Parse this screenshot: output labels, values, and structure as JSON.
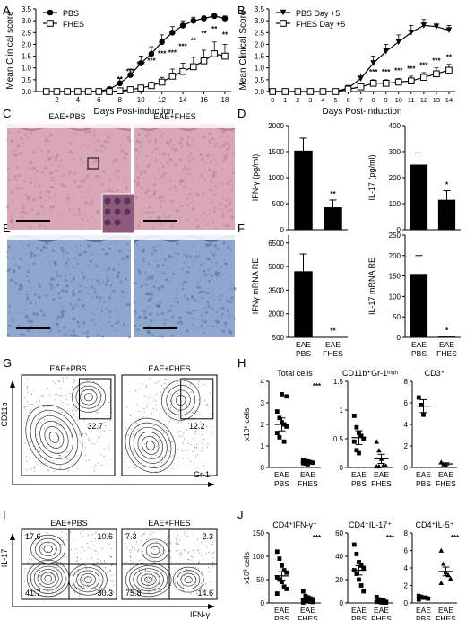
{
  "figure": {
    "panel_letters": [
      "A",
      "B",
      "C",
      "D",
      "E",
      "F",
      "G",
      "H",
      "I",
      "J"
    ]
  },
  "panel_c": {
    "labels": [
      "EAE+PBS",
      "EAE+FHES"
    ]
  },
  "colors": {
    "he_stain": "#d9a7b8",
    "he_stain_dark": "#b97c92",
    "blue_stain": "#8fa7cf",
    "blue_stain_dark": "#4e6ba8",
    "contour": "#333333"
  },
  "chart_data": [
    {
      "id": "A",
      "type": "line",
      "xlabel": "Days Post-induction",
      "ylabel": "Mean Clinical score",
      "x": [
        1,
        2,
        3,
        4,
        5,
        6,
        7,
        8,
        9,
        10,
        11,
        12,
        13,
        14,
        15,
        16,
        17,
        18
      ],
      "xticks": [
        2,
        4,
        6,
        8,
        10,
        12,
        14,
        16,
        18
      ],
      "xlim": [
        0,
        18.6
      ],
      "ylim": [
        0,
        3.5
      ],
      "yticks": [
        0.0,
        0.5,
        1.0,
        1.5,
        2.0,
        2.5,
        3.0,
        3.5
      ],
      "legend": "top-left",
      "series": [
        {
          "name": "PBS",
          "marker": "filled-circle",
          "values": [
            0,
            0,
            0,
            0,
            0,
            0.02,
            0.1,
            0.35,
            0.7,
            1.2,
            1.6,
            2.1,
            2.5,
            2.8,
            3.0,
            3.1,
            3.2,
            3.1
          ],
          "err": [
            0,
            0,
            0,
            0,
            0,
            0.03,
            0.1,
            0.2,
            0.25,
            0.3,
            0.3,
            0.3,
            0.25,
            0.2,
            0.15,
            0.1,
            0.1,
            0.1
          ]
        },
        {
          "name": "FHES",
          "marker": "open-square",
          "values": [
            0,
            0,
            0,
            0,
            0,
            0,
            0,
            0.03,
            0.08,
            0.15,
            0.25,
            0.4,
            0.65,
            0.85,
            1.05,
            1.3,
            1.6,
            1.5
          ],
          "err": [
            0,
            0,
            0,
            0,
            0,
            0,
            0,
            0.03,
            0.05,
            0.1,
            0.15,
            0.2,
            0.3,
            0.35,
            0.4,
            0.45,
            0.5,
            0.5
          ]
        }
      ],
      "annotations": [
        {
          "x": 8,
          "y": 0.42,
          "text": "**"
        },
        {
          "x": 9,
          "y": 0.75,
          "text": "***"
        },
        {
          "x": 10,
          "y": 1.05,
          "text": "***"
        },
        {
          "x": 11,
          "y": 1.2,
          "text": "***"
        },
        {
          "x": 12,
          "y": 1.5,
          "text": "***"
        },
        {
          "x": 13,
          "y": 1.55,
          "text": "***"
        },
        {
          "x": 14,
          "y": 1.8,
          "text": "***"
        },
        {
          "x": 15,
          "y": 2.05,
          "text": "**"
        },
        {
          "x": 16,
          "y": 2.35,
          "text": "**"
        },
        {
          "x": 17,
          "y": 2.55,
          "text": "**"
        },
        {
          "x": 18,
          "y": 2.3,
          "text": "**"
        }
      ]
    },
    {
      "id": "B",
      "type": "line",
      "xlabel": "Days Post-induction",
      "ylabel": "Mean Clinical Score",
      "x": [
        0,
        1,
        2,
        3,
        4,
        5,
        6,
        7,
        8,
        9,
        10,
        11,
        12,
        13,
        14
      ],
      "xticks": [
        0,
        1,
        2,
        3,
        4,
        5,
        6,
        7,
        8,
        9,
        10,
        11,
        12,
        13,
        14
      ],
      "xlim": [
        -0.3,
        14.5
      ],
      "ylim": [
        0,
        3.5
      ],
      "yticks": [
        0.0,
        0.5,
        1.0,
        1.5,
        2.0,
        2.5,
        3.0,
        3.5
      ],
      "legend": "top-left",
      "series": [
        {
          "name": "PBS Day +5",
          "marker": "filled-triangle-down",
          "values": [
            0,
            0,
            0,
            0,
            0,
            0,
            0.15,
            0.55,
            1.2,
            1.7,
            2.1,
            2.5,
            2.8,
            2.75,
            2.6
          ],
          "err": [
            0,
            0,
            0,
            0,
            0,
            0,
            0.1,
            0.2,
            0.3,
            0.3,
            0.3,
            0.3,
            0.25,
            0.2,
            0.2
          ]
        },
        {
          "name": "FHES Day +5",
          "marker": "open-square",
          "values": [
            0,
            0,
            0,
            0,
            0,
            0,
            0.1,
            0.2,
            0.35,
            0.35,
            0.4,
            0.45,
            0.6,
            0.75,
            0.9
          ],
          "err": [
            0,
            0,
            0,
            0,
            0,
            0,
            0.05,
            0.1,
            0.15,
            0.15,
            0.15,
            0.2,
            0.2,
            0.25,
            0.25
          ]
        }
      ],
      "annotations": [
        {
          "x": 8,
          "y": 0.72,
          "text": "***"
        },
        {
          "x": 9,
          "y": 0.72,
          "text": "***"
        },
        {
          "x": 10,
          "y": 0.78,
          "text": "***"
        },
        {
          "x": 11,
          "y": 0.85,
          "text": "***"
        },
        {
          "x": 12,
          "y": 1.0,
          "text": "***"
        },
        {
          "x": 13,
          "y": 1.2,
          "text": "***"
        },
        {
          "x": 14,
          "y": 1.35,
          "text": "**"
        }
      ]
    },
    {
      "id": "E1",
      "type": "bar",
      "categories": [
        "EAE PBS",
        "EAE FHES"
      ],
      "values": [
        1520,
        430
      ],
      "err": [
        240,
        140
      ],
      "ylabel": "IFN-γ (pg/ml)",
      "ylim": [
        0,
        2000
      ],
      "yticks": [
        0,
        500,
        1000,
        1500,
        2000
      ],
      "annotations": [
        {
          "category": 1,
          "text": "**"
        }
      ]
    },
    {
      "id": "E2",
      "type": "bar",
      "categories": [
        "EAE PBS",
        "EAE FHES"
      ],
      "values": [
        250,
        115
      ],
      "err": [
        45,
        35
      ],
      "ylabel": "IL-17 (pg/ml)",
      "ylim": [
        0,
        400
      ],
      "yticks": [
        0,
        100,
        200,
        300,
        400
      ],
      "annotations": [
        {
          "category": 1,
          "text": "*"
        }
      ]
    },
    {
      "id": "F1",
      "type": "bar",
      "categories": [
        "EAE PBS",
        "EAE FHES"
      ],
      "xtick_line1": [
        "EAE",
        "EAE"
      ],
      "xtick_line2": [
        "PBS",
        "FHES"
      ],
      "values": [
        4700,
        520
      ],
      "err": [
        1100,
        0
      ],
      "ylabel": "IFNγ mRNA RE",
      "ylim": [
        500,
        7000
      ],
      "yticks": [
        500,
        2000,
        3500,
        5000,
        6500
      ],
      "annotations": [
        {
          "category": 1,
          "text": "**"
        }
      ]
    },
    {
      "id": "F2",
      "type": "bar",
      "categories": [
        "EAE PBS",
        "EAE FHES"
      ],
      "xtick_line1": [
        "EAE",
        "EAE"
      ],
      "xtick_line2": [
        "PBS",
        "FHES"
      ],
      "values": [
        155,
        2
      ],
      "err": [
        45,
        0
      ],
      "ylabel": "IL-17 mRNA RE",
      "ylim": [
        0,
        250
      ],
      "yticks": [
        0,
        50,
        100,
        150,
        200,
        250
      ],
      "annotations": [
        {
          "category": 1,
          "text": "*"
        }
      ]
    },
    {
      "id": "G",
      "type": "scatter",
      "subtype": "flow-contour",
      "panels": [
        "EAE+PBS",
        "EAE+FHES"
      ],
      "xlabel": "Gr-1",
      "ylabel": "CD11b",
      "gate_percent": [
        "32.7",
        "12.2"
      ]
    },
    {
      "id": "H1",
      "type": "scatter",
      "title": "Total cells",
      "categories": [
        "EAE PBS",
        "EAE FHES"
      ],
      "xtick_line1": [
        "EAE",
        "EAE"
      ],
      "xtick_line2": [
        "PBS",
        "FHES"
      ],
      "ylabel": "x10⁶ cells",
      "ylim": [
        0,
        4
      ],
      "yticks": [
        0,
        1,
        2,
        3,
        4
      ],
      "points": [
        [
          2.6,
          2.3,
          2.1,
          2.0,
          1.9,
          1.6,
          1.4,
          3.4,
          1.2,
          3.3
        ],
        [
          0.35,
          0.3,
          0.28,
          0.25,
          0.22,
          0.2,
          0.18,
          0.15
        ]
      ],
      "mean": [
        2.0,
        0.24
      ],
      "sem": [
        0.3,
        0.05
      ],
      "annotations": [
        {
          "category": 1,
          "text": "***"
        }
      ]
    },
    {
      "id": "H2",
      "type": "scatter",
      "title": "CD11b⁺Gr-1ʰⁱᵍʰ",
      "categories": [
        "EAE PBS",
        "EAE FHES"
      ],
      "xtick_line1": [
        "EAE",
        "EAE"
      ],
      "xtick_line2": [
        "PBS",
        "FHES"
      ],
      "ylim": [
        0,
        1.5
      ],
      "yticks": [
        0.0,
        0.5,
        1.0,
        1.5
      ],
      "points": [
        [
          0.9,
          0.7,
          0.6,
          0.55,
          0.5,
          0.45,
          0.3,
          0.25
        ],
        [
          0.45,
          0.3,
          0.15,
          0.05,
          0.03,
          0.02,
          0.02
        ]
      ],
      "mean": [
        0.52,
        0.15
      ],
      "sem": [
        0.12,
        0.08
      ]
    },
    {
      "id": "H3",
      "type": "scatter",
      "title": "CD3⁺",
      "categories": [
        "EAE PBS",
        "EAE FHES"
      ],
      "xtick_line1": [
        "EAE",
        "EAE"
      ],
      "xtick_line2": [
        "PBS",
        "FHES"
      ],
      "ylim": [
        0,
        8
      ],
      "yticks": [
        0,
        2,
        4,
        6,
        8
      ],
      "points": [
        [
          6.5,
          5.8,
          4.9
        ],
        [
          0.5,
          0.3,
          0.2
        ]
      ],
      "mean": [
        5.7,
        0.33
      ],
      "sem": [
        0.6,
        0.1
      ]
    },
    {
      "id": "I",
      "type": "scatter",
      "subtype": "flow-contour",
      "panels": [
        "EAE+PBS",
        "EAE+FHES"
      ],
      "xlabel": "IFN-γ",
      "ylabel": "IL-17",
      "quadrants": [
        [
          "17.6",
          "10.6",
          "41.7",
          "30.3"
        ],
        [
          "7.3",
          "2.3",
          "75.8",
          "14.6"
        ]
      ]
    },
    {
      "id": "J1",
      "type": "scatter",
      "title": "CD4⁺IFN-γ⁺",
      "categories": [
        "EAE PBS",
        "EAE FHES"
      ],
      "xtick_line1": [
        "EAE",
        "EAE"
      ],
      "xtick_line2": [
        "PBS",
        "FHES"
      ],
      "ylabel": "x10³ cells",
      "ylim": [
        0,
        150
      ],
      "yticks": [
        0,
        50,
        100,
        150
      ],
      "points": [
        [
          110,
          95,
          80,
          70,
          65,
          55,
          50,
          45,
          35,
          30,
          20
        ],
        [
          25,
          15,
          12,
          10,
          8,
          6,
          5,
          4,
          3,
          2,
          1
        ]
      ],
      "mean": [
        58,
        8
      ],
      "sem": [
        9,
        2
      ],
      "annotations": [
        {
          "category": 1,
          "text": "***"
        }
      ]
    },
    {
      "id": "J2",
      "type": "scatter",
      "title": "CD4⁺IL-17⁺",
      "categories": [
        "EAE PBS",
        "EAE FHES"
      ],
      "xtick_line1": [
        "EAE",
        "EAE"
      ],
      "xtick_line2": [
        "PBS",
        "FHES"
      ],
      "ylim": [
        0,
        60
      ],
      "yticks": [
        0,
        20,
        40,
        60
      ],
      "points": [
        [
          50,
          42,
          35,
          32,
          30,
          28,
          25,
          20,
          15,
          10
        ],
        [
          5,
          3,
          2,
          2,
          1,
          1,
          1,
          0.5,
          0.5,
          0.3
        ]
      ],
      "mean": [
        28,
        1.5
      ],
      "sem": [
        4,
        0.5
      ],
      "annotations": [
        {
          "category": 1,
          "text": "***"
        }
      ]
    },
    {
      "id": "J3",
      "type": "scatter",
      "title": "CD4⁺IL-5⁺",
      "categories": [
        "EAE PBS",
        "EAE FHES"
      ],
      "xtick_line1": [
        "EAE",
        "EAE"
      ],
      "xtick_line2": [
        "PBS",
        "FHES"
      ],
      "ylim": [
        0,
        8
      ],
      "yticks": [
        0,
        2,
        4,
        6,
        8
      ],
      "points": [
        [
          0.8,
          0.7,
          0.6,
          0.6,
          0.5,
          0.4
        ],
        [
          6.0,
          4.5,
          3.5,
          3.2,
          2.8,
          2.3
        ]
      ],
      "mean": [
        0.6,
        3.6
      ],
      "sem": [
        0.1,
        0.5
      ],
      "annotations": [
        {
          "category": 1,
          "text": "***"
        }
      ]
    }
  ]
}
